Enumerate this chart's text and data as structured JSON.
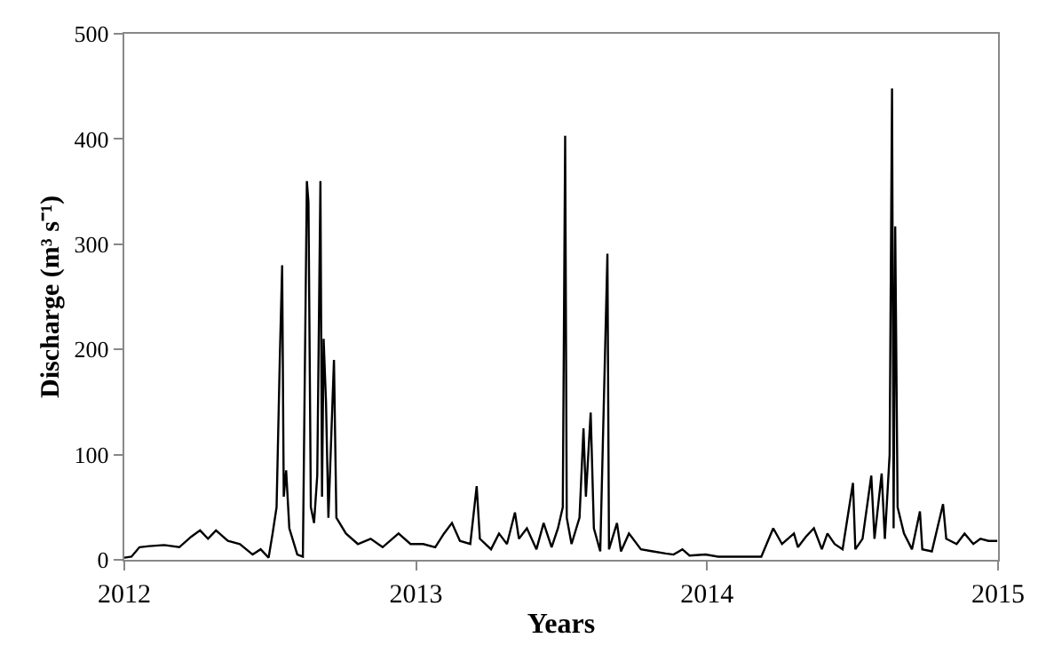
{
  "chart_data": {
    "type": "line",
    "xlabel": "Years",
    "ylabel": "Discharge (m³ s⁻¹)",
    "xlim": [
      "2012",
      "2015"
    ],
    "xticks": [
      "2012",
      "2013",
      "2014",
      "2015"
    ],
    "ylim": [
      0,
      500
    ],
    "yticks": [
      0,
      100,
      200,
      300,
      400,
      500
    ],
    "marker": "none",
    "line_style": "solid",
    "series": [
      {
        "color": "#000000",
        "x": [
          "2012-01-01",
          "2012-01-10",
          "2012-01-20",
          "2012-02-01",
          "2012-02-20",
          "2012-03-10",
          "2012-03-25",
          "2012-04-05",
          "2012-04-15",
          "2012-04-25",
          "2012-05-10",
          "2012-05-25",
          "2012-06-10",
          "2012-06-20",
          "2012-06-30",
          "2012-07-05",
          "2012-07-10",
          "2012-07-14",
          "2012-07-17",
          "2012-07-19",
          "2012-07-22",
          "2012-07-26",
          "2012-08-05",
          "2012-08-12",
          "2012-08-17",
          "2012-08-19",
          "2012-08-22",
          "2012-08-26",
          "2012-08-30",
          "2012-09-03",
          "2012-09-05",
          "2012-09-07",
          "2012-09-10",
          "2012-09-13",
          "2012-09-20",
          "2012-09-23",
          "2012-10-05",
          "2012-10-20",
          "2012-11-05",
          "2012-11-20",
          "2012-12-10",
          "2012-12-25",
          "2013-01-10",
          "2013-01-25",
          "2013-02-05",
          "2013-02-15",
          "2013-02-25",
          "2013-03-10",
          "2013-03-18",
          "2013-03-22",
          "2013-04-05",
          "2013-04-15",
          "2013-04-25",
          "2013-05-05",
          "2013-05-10",
          "2013-05-20",
          "2013-06-01",
          "2013-06-10",
          "2013-06-20",
          "2013-06-28",
          "2013-07-04",
          "2013-07-07",
          "2013-07-09",
          "2013-07-15",
          "2013-07-25",
          "2013-07-30",
          "2013-08-02",
          "2013-08-08",
          "2013-08-12",
          "2013-08-20",
          "2013-08-29",
          "2013-08-31",
          "2013-09-10",
          "2013-09-15",
          "2013-09-25",
          "2013-10-10",
          "2013-10-25",
          "2013-11-10",
          "2013-11-20",
          "2013-12-01",
          "2013-12-10",
          "2013-12-30",
          "2014-01-15",
          "2014-02-10",
          "2014-03-10",
          "2014-03-25",
          "2014-04-05",
          "2014-04-20",
          "2014-04-25",
          "2014-05-05",
          "2014-05-15",
          "2014-05-25",
          "2014-06-01",
          "2014-06-10",
          "2014-06-20",
          "2014-07-03",
          "2014-07-06",
          "2014-07-15",
          "2014-07-26",
          "2014-07-30",
          "2014-08-08",
          "2014-08-12",
          "2014-08-18",
          "2014-08-21",
          "2014-08-23",
          "2014-08-25",
          "2014-08-28",
          "2014-09-05",
          "2014-09-15",
          "2014-09-25",
          "2014-09-28",
          "2014-10-10",
          "2014-10-24",
          "2014-10-28",
          "2014-11-10",
          "2014-11-20",
          "2014-12-01",
          "2014-12-10",
          "2014-12-20",
          "2014-12-31"
        ],
        "values": [
          2,
          3,
          12,
          13,
          14,
          12,
          22,
          28,
          20,
          28,
          18,
          15,
          5,
          10,
          2,
          25,
          50,
          190,
          280,
          60,
          85,
          30,
          5,
          3,
          360,
          340,
          50,
          35,
          80,
          360,
          60,
          210,
          150,
          40,
          190,
          40,
          25,
          15,
          20,
          12,
          25,
          15,
          15,
          12,
          25,
          35,
          18,
          15,
          70,
          20,
          10,
          25,
          15,
          45,
          20,
          30,
          10,
          35,
          12,
          30,
          50,
          403,
          40,
          15,
          40,
          125,
          60,
          140,
          30,
          8,
          291,
          10,
          35,
          8,
          25,
          10,
          8,
          6,
          5,
          10,
          4,
          5,
          3,
          3,
          3,
          30,
          15,
          25,
          12,
          22,
          30,
          10,
          25,
          15,
          10,
          73,
          10,
          20,
          80,
          20,
          82,
          20,
          100,
          448,
          30,
          317,
          50,
          25,
          10,
          46,
          10,
          8,
          53,
          20,
          15,
          25,
          15,
          20,
          18,
          18
        ]
      }
    ]
  }
}
